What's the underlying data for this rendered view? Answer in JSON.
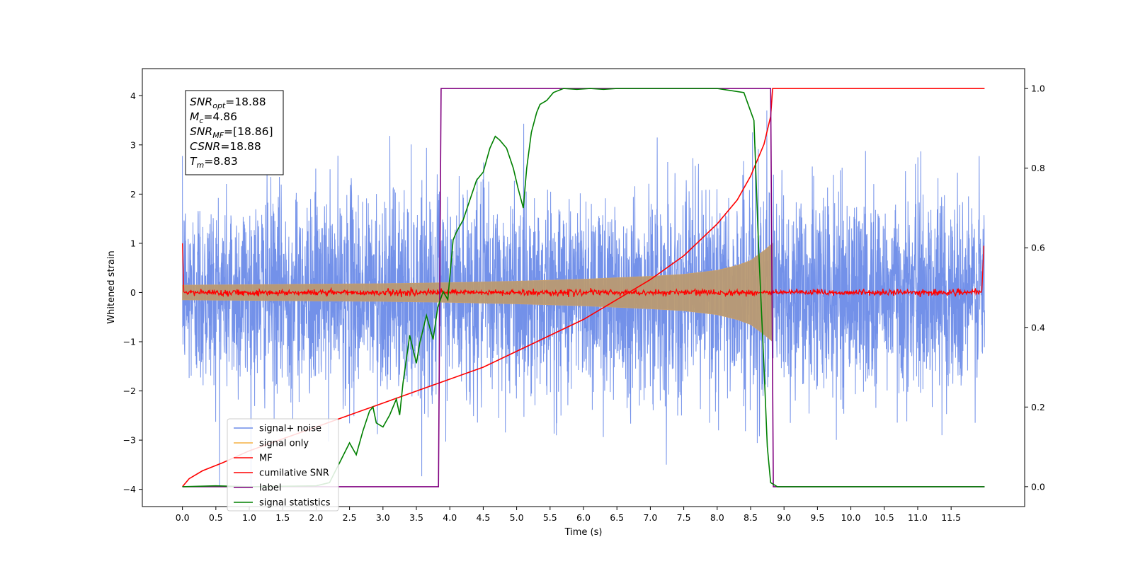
{
  "chart_data": {
    "type": "line",
    "title": "",
    "xlabel": "Time (s)",
    "ylabel": "Whitened strain",
    "xlim": [
      -0.6,
      12.6
    ],
    "ylim_left": [
      -4.35,
      4.55
    ],
    "ylim_right": [
      -0.05,
      1.05
    ],
    "x_ticks": [
      0.0,
      0.5,
      1.0,
      1.5,
      2.0,
      2.5,
      3.0,
      3.5,
      4.0,
      4.5,
      5.0,
      5.5,
      6.0,
      6.5,
      7.0,
      7.5,
      8.0,
      8.5,
      9.0,
      9.5,
      10.0,
      10.5,
      11.0,
      11.5
    ],
    "x_tick_labels": [
      "0.0",
      "0.5",
      "1.0",
      "1.5",
      "2.0",
      "2.5",
      "3.0",
      "3.5",
      "4.0",
      "4.5",
      "5.0",
      "5.5",
      "6.0",
      "6.5",
      "7.0",
      "7.5",
      "8.0",
      "8.5",
      "9.0",
      "9.5",
      "10.0",
      "10.5",
      "11.0",
      "11.5"
    ],
    "y_ticks_left": [
      -4,
      -3,
      -2,
      -1,
      0,
      1,
      2,
      3,
      4
    ],
    "y_tick_labels_left": [
      "−4",
      "−3",
      "−2",
      "−1",
      "0",
      "1",
      "2",
      "3",
      "4"
    ],
    "y_ticks_right": [
      0.0,
      0.2,
      0.4,
      0.6,
      0.8,
      1.0
    ],
    "y_tick_labels_right": [
      "0.0",
      "0.2",
      "0.4",
      "0.6",
      "0.8",
      "1.0"
    ],
    "legend_position": "lower-left",
    "grid": false,
    "series": [
      {
        "name": "signal+ noise",
        "axis": "left",
        "color": "#6b8be8",
        "style": "noise",
        "x_range": [
          0,
          12
        ],
        "amplitude_std": 1.0,
        "description_values": "gaussian noise plus chirp, peaks around ±4"
      },
      {
        "name": "signal only",
        "axis": "left",
        "color": "#f5b041",
        "style": "chirp",
        "envelope": {
          "x": [
            0,
            1,
            2,
            3,
            4,
            5,
            6,
            7,
            7.5,
            8,
            8.3,
            8.5,
            8.7,
            8.83
          ],
          "amp": [
            0.15,
            0.16,
            0.17,
            0.18,
            0.2,
            0.23,
            0.27,
            0.33,
            0.37,
            0.45,
            0.55,
            0.65,
            0.85,
            1.0
          ]
        }
      },
      {
        "name": "MF",
        "axis": "left",
        "color": "#ff0000",
        "style": "noisy-flat",
        "level": 0.0,
        "noise_amp": 0.05,
        "edge_value": 1.0
      },
      {
        "name": "cumilative SNR",
        "axis": "right",
        "color": "#ff0000",
        "x": [
          0.0,
          0.1,
          0.3,
          0.6,
          1.0,
          1.5,
          2.0,
          2.5,
          3.0,
          3.5,
          4.0,
          4.5,
          5.0,
          5.5,
          6.0,
          6.5,
          7.0,
          7.5,
          8.0,
          8.3,
          8.5,
          8.7,
          8.8,
          8.83,
          12.0
        ],
        "values": [
          0.0,
          0.02,
          0.04,
          0.06,
          0.09,
          0.12,
          0.15,
          0.18,
          0.21,
          0.24,
          0.27,
          0.3,
          0.34,
          0.38,
          0.42,
          0.47,
          0.52,
          0.58,
          0.66,
          0.72,
          0.78,
          0.86,
          0.93,
          1.0,
          1.0
        ]
      },
      {
        "name": "label",
        "axis": "right",
        "color": "#800080",
        "x": [
          0.0,
          3.83,
          3.87,
          8.8,
          8.84,
          12.0
        ],
        "values": [
          0.0,
          0.0,
          1.0,
          1.0,
          0.0,
          0.0
        ]
      },
      {
        "name": "signal statistics",
        "axis": "right",
        "color": "#008000",
        "x": [
          0.0,
          0.5,
          1.0,
          1.5,
          2.0,
          2.2,
          2.35,
          2.5,
          2.6,
          2.7,
          2.8,
          2.85,
          2.9,
          3.0,
          3.1,
          3.2,
          3.25,
          3.3,
          3.4,
          3.5,
          3.55,
          3.65,
          3.75,
          3.82,
          3.9,
          3.97,
          4.05,
          4.1,
          4.2,
          4.3,
          4.4,
          4.5,
          4.55,
          4.6,
          4.68,
          4.75,
          4.85,
          4.95,
          5.02,
          5.1,
          5.15,
          5.22,
          5.3,
          5.35,
          5.45,
          5.55,
          5.7,
          5.9,
          6.1,
          6.3,
          6.5,
          6.7,
          6.9,
          7.1,
          7.5,
          8.0,
          8.4,
          8.55,
          8.62,
          8.7,
          8.75,
          8.8,
          8.9,
          9.5,
          12.0
        ],
        "values": [
          0.0,
          0.002,
          0.0,
          0.001,
          0.002,
          0.01,
          0.06,
          0.11,
          0.08,
          0.14,
          0.19,
          0.2,
          0.16,
          0.15,
          0.18,
          0.22,
          0.18,
          0.26,
          0.38,
          0.31,
          0.36,
          0.43,
          0.37,
          0.45,
          0.49,
          0.47,
          0.62,
          0.64,
          0.67,
          0.72,
          0.77,
          0.79,
          0.82,
          0.85,
          0.88,
          0.87,
          0.85,
          0.8,
          0.75,
          0.7,
          0.8,
          0.89,
          0.94,
          0.96,
          0.97,
          0.99,
          1.0,
          0.998,
          1.0,
          0.998,
          1.0,
          1.0,
          1.0,
          1.0,
          1.0,
          1.0,
          0.99,
          0.92,
          0.6,
          0.3,
          0.1,
          0.01,
          0.0,
          0.0,
          0.0
        ]
      }
    ],
    "annotations": [
      {
        "var": "SNR",
        "sub": "opt",
        "value": "=18.88"
      },
      {
        "var": "M",
        "sub": "c",
        "value": "=4.86"
      },
      {
        "var": "SNR",
        "sub": "MF",
        "value": "=[18.86]"
      },
      {
        "var": "CSNR",
        "sub": "",
        "value": "=18.88"
      },
      {
        "var": "T",
        "sub": "m",
        "value": "=8.83"
      }
    ]
  }
}
